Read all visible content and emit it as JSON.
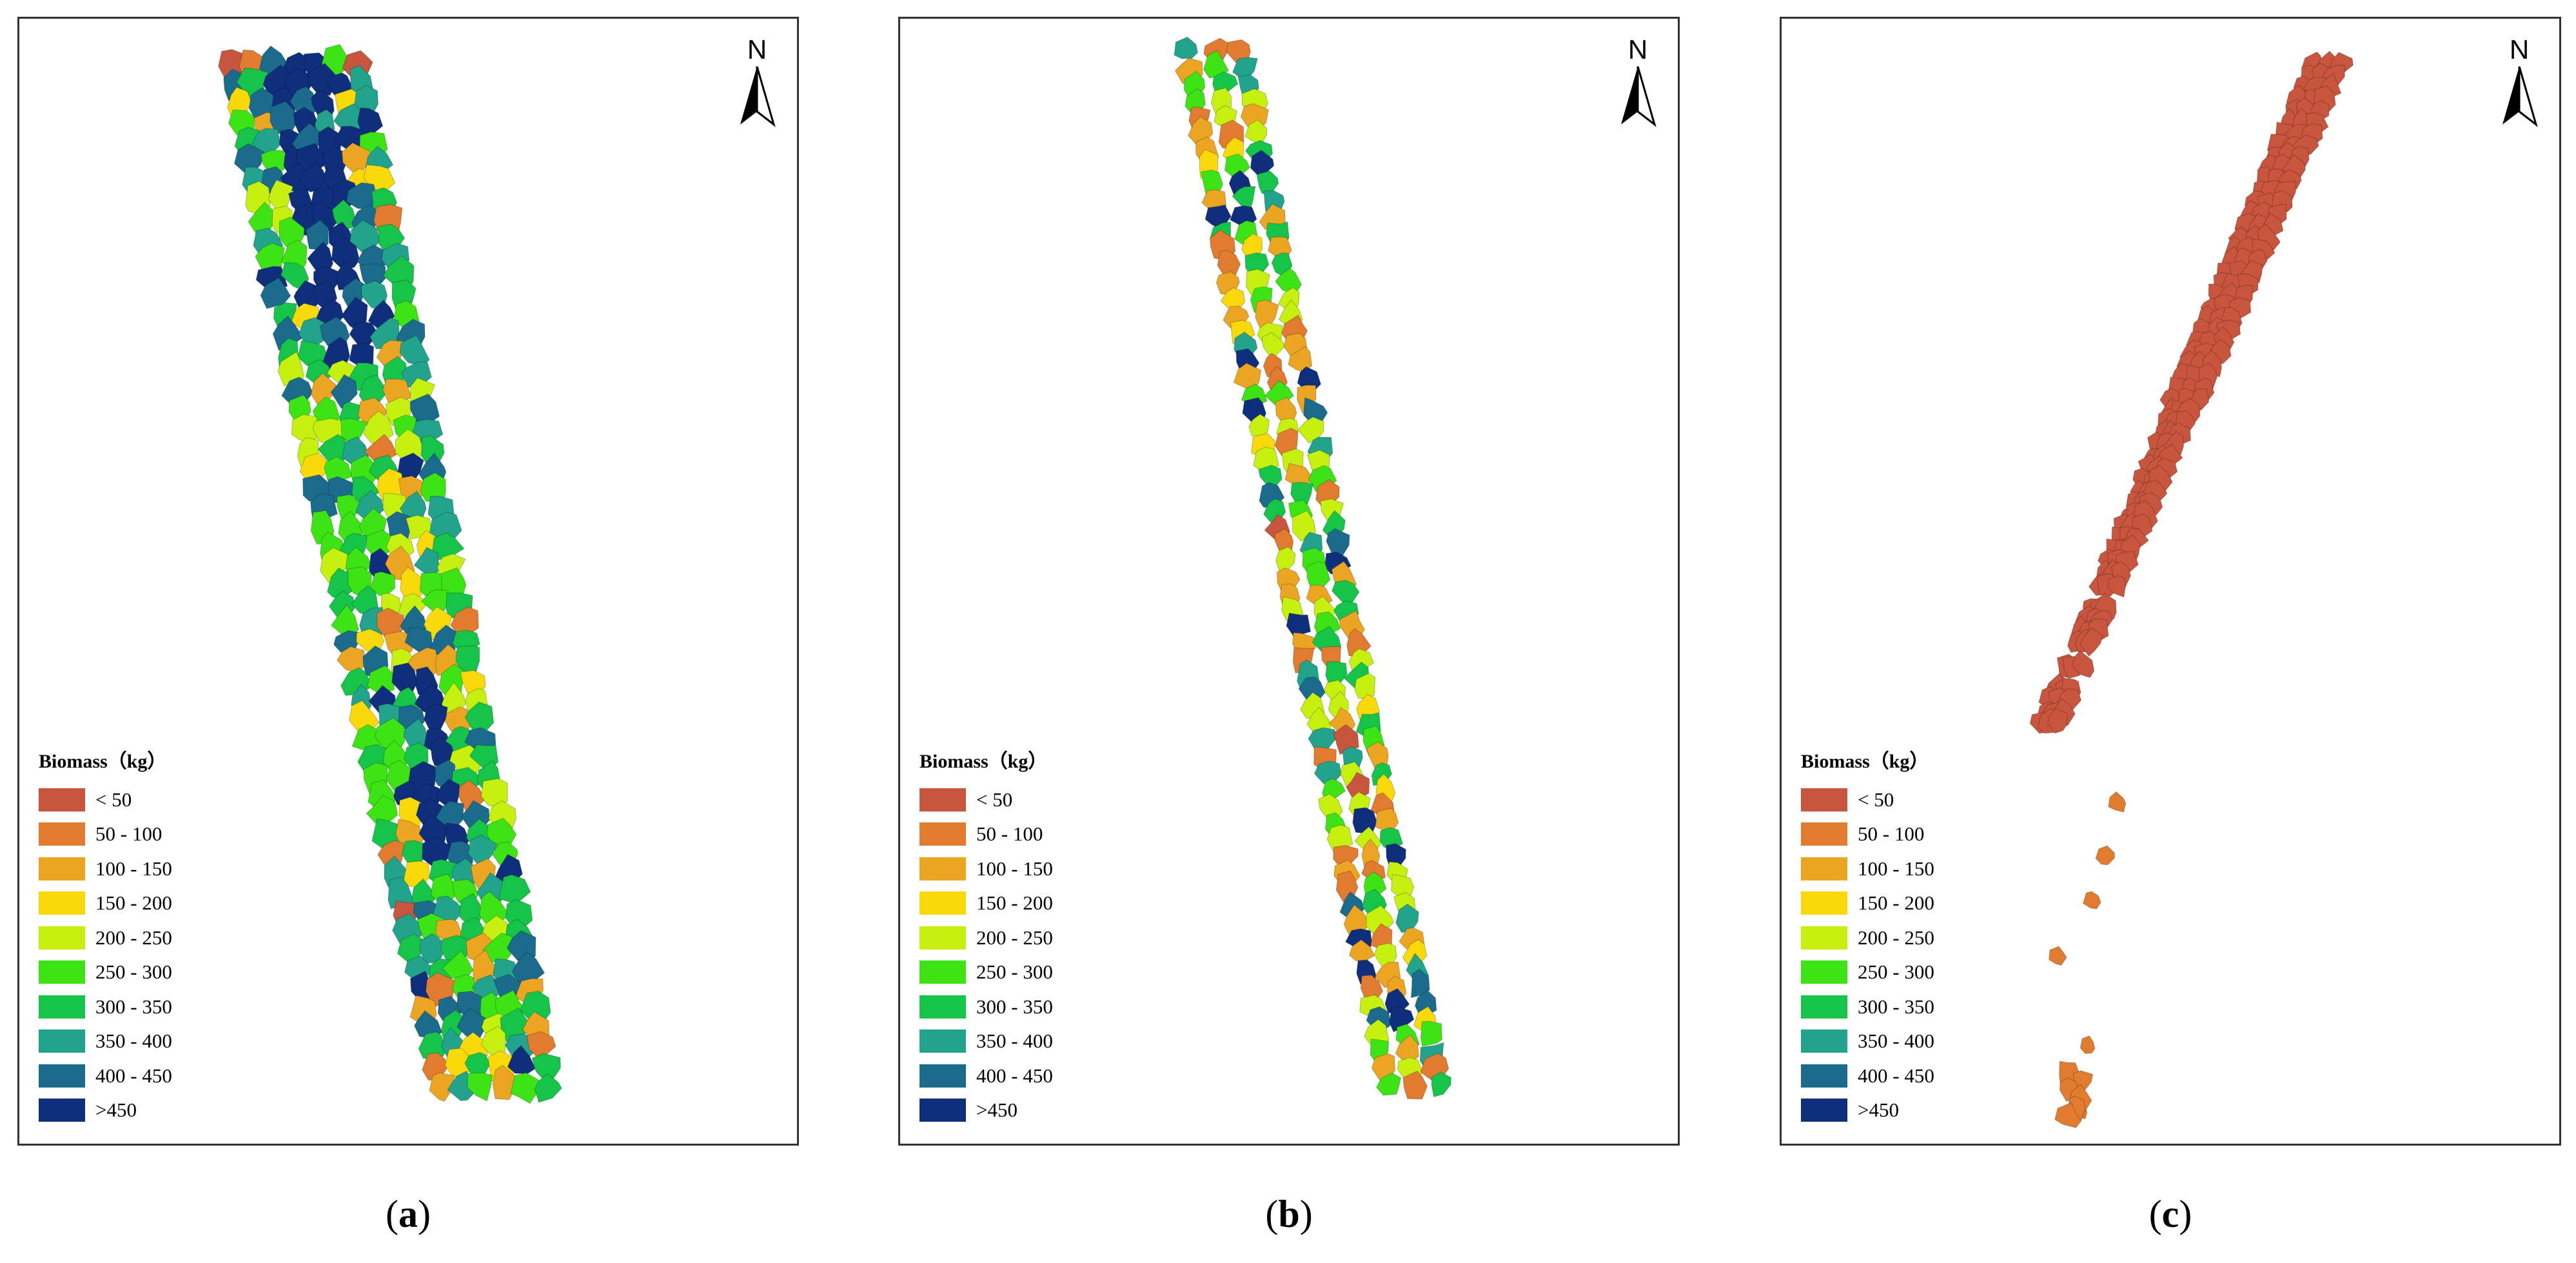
{
  "north_label": "N",
  "legend": {
    "title": "Biomass（kg）",
    "classes": [
      {
        "label": "< 50",
        "color": "#c8553d"
      },
      {
        "label": "50 - 100",
        "color": "#e07b2f"
      },
      {
        "label": "100 - 150",
        "color": "#eba523"
      },
      {
        "label": "150 - 200",
        "color": "#f9d90a"
      },
      {
        "label": "200 - 250",
        "color": "#c6f00f"
      },
      {
        "label": "250 - 300",
        "color": "#3ee316"
      },
      {
        "label": "300 - 350",
        "color": "#15c449"
      },
      {
        "label": "350 - 400",
        "color": "#22a38b"
      },
      {
        "label": "400 - 450",
        "color": "#1b6c8c"
      },
      {
        "label": ">450",
        "color": "#0f2f7d"
      }
    ]
  },
  "panels": [
    {
      "id": "a",
      "caption_open": "(",
      "caption_letter": "a",
      "caption_close": ")"
    },
    {
      "id": "b",
      "caption_open": "(",
      "caption_letter": "b",
      "caption_close": ")"
    },
    {
      "id": "c",
      "caption_open": "(",
      "caption_letter": "c",
      "caption_close": ")"
    }
  ]
}
